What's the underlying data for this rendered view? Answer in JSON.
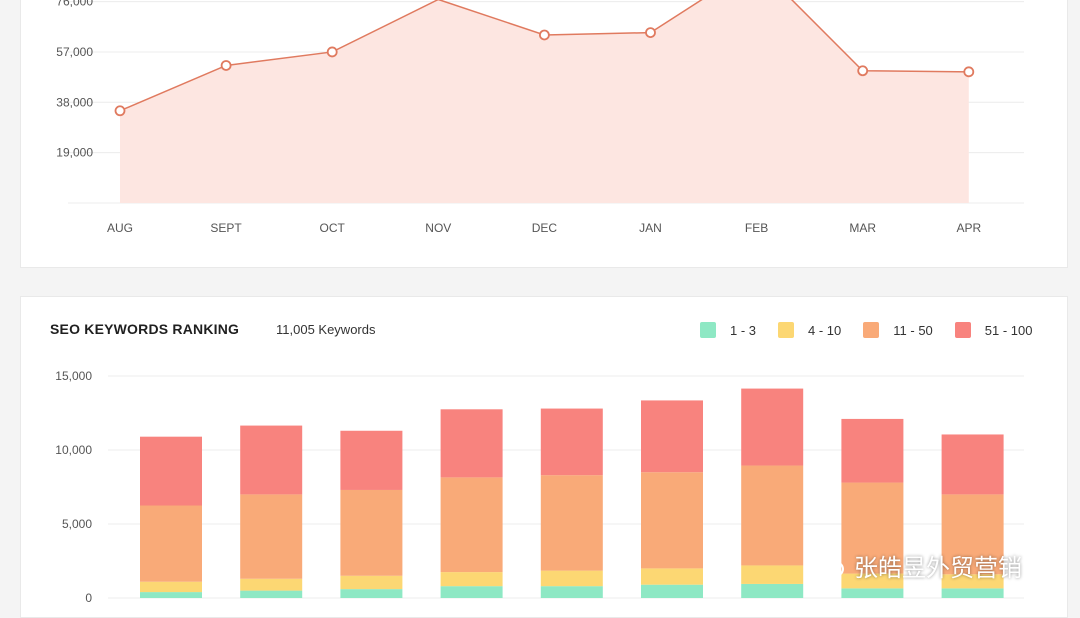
{
  "colors": {
    "line": "#e07a5f",
    "area": "#fde6e1",
    "grid": "#ececec",
    "r1_3": "#8ee8c4",
    "r4_10": "#fcd773",
    "r11_50": "#f9aa78",
    "r51_100": "#f8837e"
  },
  "chart_data": [
    {
      "type": "area",
      "categories": [
        "AUG",
        "SEPT",
        "OCT",
        "NOV",
        "DEC",
        "JAN",
        "FEB",
        "MAR",
        "APR"
      ],
      "values": [
        34800,
        51900,
        57000,
        76800,
        63400,
        64300,
        90000,
        49900,
        49500
      ],
      "yticks": [
        "19,000",
        "38,000",
        "57,000",
        "76,000"
      ],
      "ylim": [
        0,
        80000
      ],
      "grid": true
    },
    {
      "type": "bar",
      "title": "SEO KEYWORDS RANKING",
      "subtitle": "11,005 Keywords",
      "categories": [
        "",
        "",
        "",
        "",
        "",
        "",
        "",
        "",
        ""
      ],
      "yticks": [
        "0",
        "5,000",
        "10,000",
        "15,000"
      ],
      "ylim": [
        0,
        15000
      ],
      "stacked": true,
      "legend_position": "top-right",
      "series": [
        {
          "name": "1 - 3",
          "values": [
            400,
            500,
            600,
            800,
            800,
            900,
            950,
            650,
            650
          ]
        },
        {
          "name": "4 - 10",
          "values": [
            700,
            800,
            900,
            950,
            1050,
            1100,
            1250,
            1000,
            950
          ]
        },
        {
          "name": "11 - 50",
          "values": [
            5150,
            5700,
            5800,
            6400,
            6450,
            6500,
            6750,
            6150,
            5400
          ]
        },
        {
          "name": "51 - 100",
          "values": [
            4650,
            4650,
            4000,
            4600,
            4500,
            4850,
            5200,
            4300,
            4050
          ]
        }
      ]
    }
  ],
  "watermark": "张皓昱外贸营销"
}
